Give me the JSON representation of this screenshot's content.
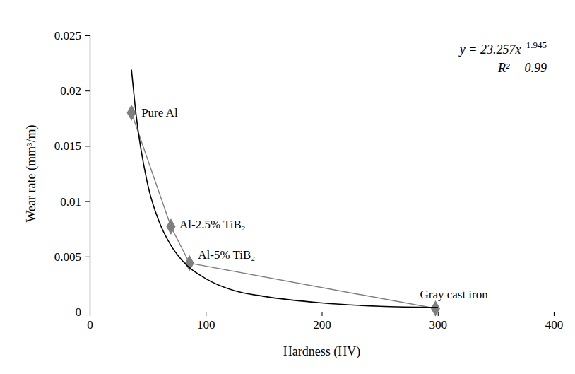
{
  "chart_data": {
    "type": "scatter",
    "x_label": "Hardness (HV)",
    "y_label": "Wear rate (mm³/m)",
    "xlim": [
      0,
      400
    ],
    "xticks": [
      0,
      100,
      200,
      300,
      400
    ],
    "ylim": [
      0,
      0.025
    ],
    "yticks": [
      0,
      0.005,
      0.01,
      0.015,
      0.02,
      0.025
    ],
    "grid": false,
    "annotations": [
      {
        "text": "y = 23.257x",
        "superscript": "−1.945"
      },
      {
        "text": "R² = 0.99"
      }
    ],
    "series": [
      {
        "type": "scatter",
        "color": "#7f7f7f",
        "marker": "diamond",
        "line_style": "solid",
        "x": [
          36,
          70,
          86,
          298
        ],
        "values": [
          0.018,
          0.0077,
          0.0044,
          0.0003
        ],
        "labels": [
          "Pure Al",
          "Al-2.5% TiB₂",
          "Al-5% TiB₂",
          "Gray cast iron"
        ]
      },
      {
        "type": "line",
        "color": "#000000",
        "line_style": "solid",
        "x": [
          36,
          40,
          50,
          60,
          70,
          80,
          100,
          125,
          150,
          200,
          250,
          300
        ],
        "values": [
          0.0219,
          0.0178,
          0.0115,
          0.0081,
          0.006,
          0.0046,
          0.003,
          0.0019,
          0.0014,
          0.0008,
          0.0005,
          0.0004
        ]
      }
    ]
  }
}
